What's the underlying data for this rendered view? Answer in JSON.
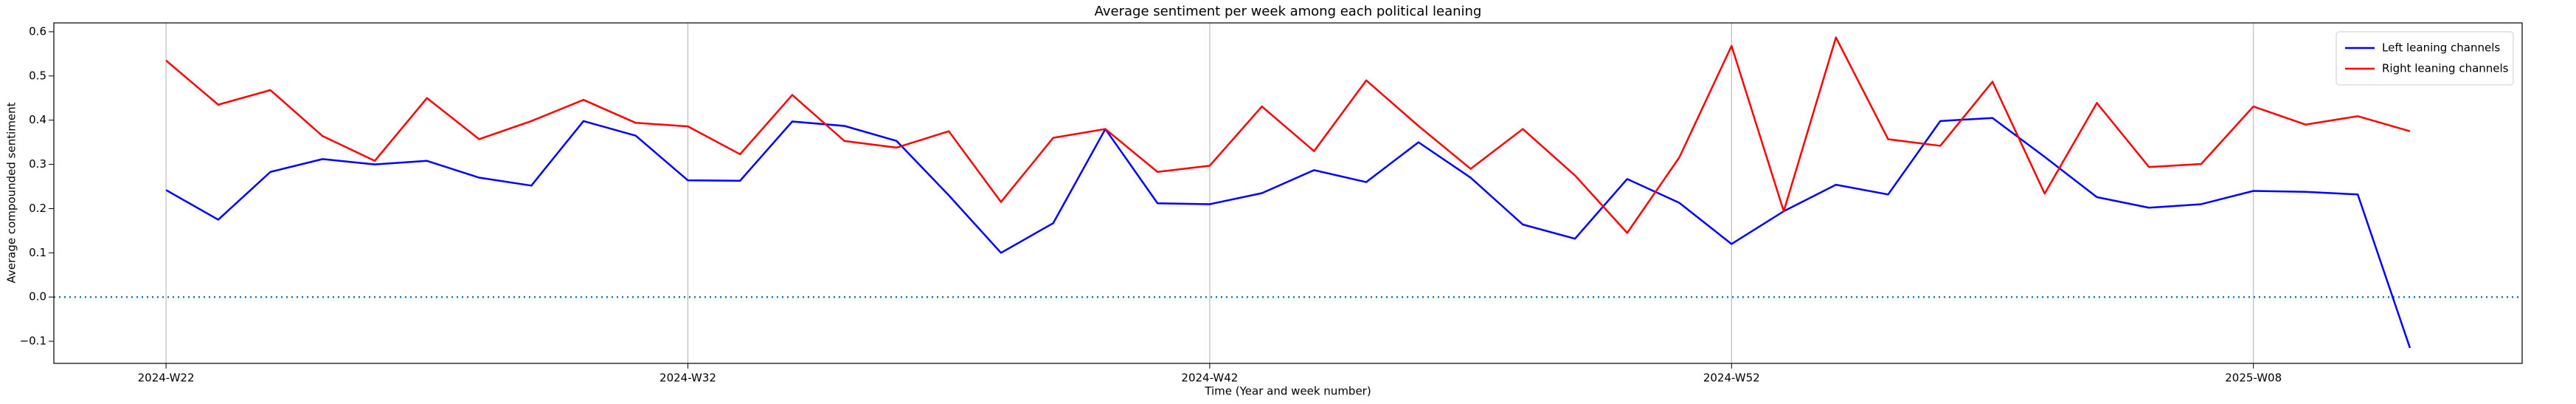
{
  "chart_data": {
    "type": "line",
    "title": "Average sentiment per week among each political leaning",
    "xlabel": "Time (Year and week number)",
    "ylabel": "Average compounded sentiment",
    "categories": [
      "2024-W22",
      null,
      null,
      null,
      null,
      null,
      null,
      null,
      null,
      null,
      "2024-W32",
      null,
      null,
      null,
      null,
      null,
      null,
      null,
      null,
      null,
      "2024-W42",
      null,
      null,
      null,
      null,
      null,
      null,
      null,
      null,
      null,
      "2024-W52",
      null,
      null,
      null,
      null,
      null,
      null,
      null,
      null,
      null,
      "2025-W08",
      null,
      null,
      null
    ],
    "series": [
      {
        "name": "Left leaning channels",
        "color": "#0000ff",
        "values": [
          0.242,
          0.175,
          0.283,
          0.312,
          0.3,
          0.308,
          0.27,
          0.252,
          0.398,
          0.365,
          0.264,
          0.263,
          0.397,
          0.387,
          0.353,
          0.23,
          0.1,
          0.167,
          0.38,
          0.212,
          0.21,
          0.235,
          0.287,
          0.26,
          0.35,
          0.27,
          0.164,
          0.132,
          0.267,
          0.213,
          0.12,
          0.194,
          0.254,
          0.232,
          0.398,
          0.405,
          0.317,
          0.226,
          0.202,
          0.21,
          0.24,
          0.238,
          0.232,
          -0.115
        ]
      },
      {
        "name": "Right leaning channels",
        "color": "#ff0000",
        "values": [
          0.535,
          0.435,
          0.468,
          0.364,
          0.308,
          0.45,
          0.357,
          0.398,
          0.446,
          0.394,
          0.386,
          0.323,
          0.457,
          0.353,
          0.338,
          0.375,
          0.215,
          0.36,
          0.38,
          0.283,
          0.297,
          0.431,
          0.33,
          0.49,
          0.387,
          0.29,
          0.38,
          0.275,
          0.145,
          0.316,
          0.568,
          0.194,
          0.587,
          0.357,
          0.342,
          0.487,
          0.234,
          0.439,
          0.294,
          0.301,
          0.431,
          0.39,
          0.409,
          0.375
        ]
      }
    ],
    "ylim": [
      -0.15,
      0.62
    ],
    "yticks": [
      {
        "value": -0.1,
        "label": "−0.1"
      },
      {
        "value": 0,
        "label": "0.0"
      },
      0.1,
      0.2,
      0.3,
      0.4,
      0.5,
      0.6
    ],
    "xgrid": true,
    "hline": {
      "value": 0,
      "color": "#1f77b4"
    },
    "legend": "upper right"
  }
}
